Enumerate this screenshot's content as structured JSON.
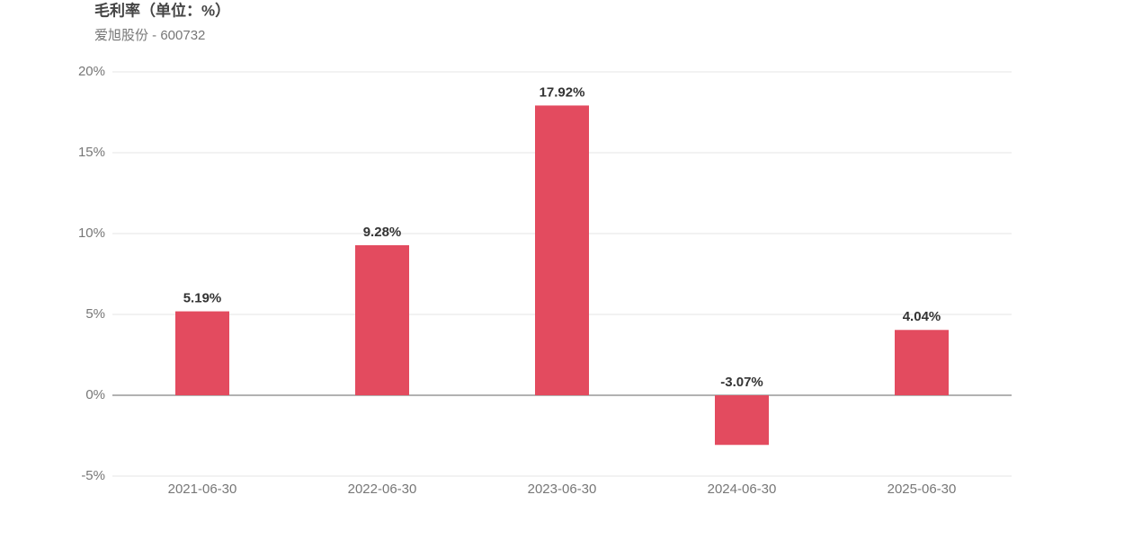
{
  "chart_data": {
    "type": "bar",
    "title": "毛利率（单位：%）",
    "subtitle": "爱旭股份 - 600732",
    "categories": [
      "2021-06-30",
      "2022-06-30",
      "2023-06-30",
      "2024-06-30",
      "2025-06-30"
    ],
    "values": [
      5.19,
      9.28,
      17.92,
      -3.07,
      4.04
    ],
    "value_labels": [
      "5.19%",
      "9.28%",
      "17.92%",
      "-3.07%",
      "4.04%"
    ],
    "color": "#e34b5f",
    "ylim": [
      -5,
      20
    ],
    "yticks": [
      {
        "value": -5,
        "label": "-5%"
      },
      {
        "value": 0,
        "label": "0%"
      },
      {
        "value": 5,
        "label": "5%"
      },
      {
        "value": 10,
        "label": "10%"
      },
      {
        "value": 15,
        "label": "15%"
      },
      {
        "value": 20,
        "label": "20%"
      }
    ],
    "grid": true
  }
}
